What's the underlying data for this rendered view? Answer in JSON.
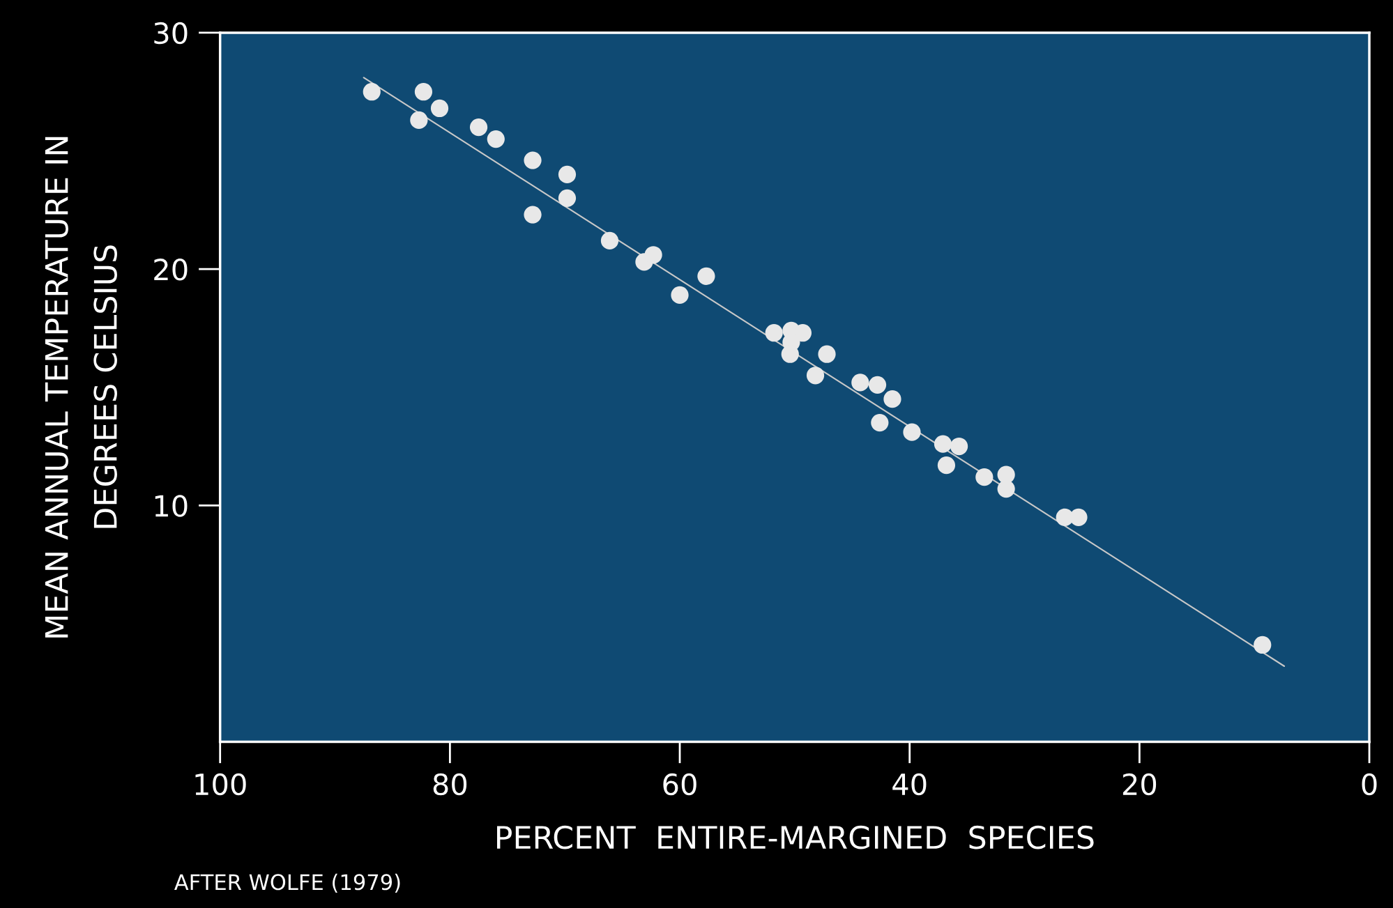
{
  "chart_data": {
    "type": "scatter",
    "xlabel": "PERCENT  ENTIRE-MARGINED  SPECIES",
    "ylabel": "MEAN ANNUAL TEMPERATURE IN\nDEGREES CELSIUS",
    "annotations": [
      "AFTER WOLFE (1979)"
    ],
    "xlim": [
      100,
      0
    ],
    "ylim": [
      0,
      30
    ],
    "xticks": [
      100,
      80,
      60,
      40,
      20,
      0
    ],
    "yticks": [
      10,
      20,
      30
    ],
    "grid": false,
    "series": [
      {
        "color": "#e8e8e8",
        "x": [
          86.8,
          82.3,
          82.7,
          80.9,
          77.5,
          76.0,
          72.8,
          72.8,
          69.8,
          69.8,
          66.1,
          63.1,
          62.3,
          60.0,
          57.7,
          51.8,
          50.3,
          49.3,
          50.3,
          50.4,
          47.2,
          48.2,
          44.3,
          42.8,
          41.5,
          42.6,
          39.8,
          37.1,
          35.7,
          36.8,
          33.5,
          31.6,
          31.6,
          26.5,
          25.3,
          9.3
        ],
        "marker": "circle",
        "values": [
          27.5,
          27.5,
          26.3,
          26.8,
          26.0,
          25.5,
          24.6,
          22.3,
          24.0,
          23.0,
          21.2,
          20.3,
          20.6,
          18.9,
          19.7,
          17.3,
          17.4,
          17.3,
          16.9,
          16.4,
          16.4,
          15.5,
          15.2,
          15.1,
          14.5,
          13.5,
          13.1,
          12.6,
          12.5,
          11.7,
          11.2,
          11.3,
          10.7,
          9.5,
          9.5,
          4.1
        ]
      },
      {
        "type": "line",
        "color": "#c8c8c8",
        "x": [
          87.5,
          7.4
        ],
        "values": [
          28.1,
          3.2
        ]
      }
    ]
  }
}
